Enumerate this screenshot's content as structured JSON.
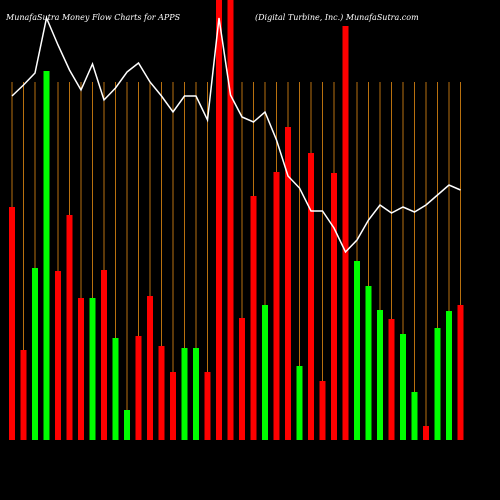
{
  "chart_data": {
    "type": "bar",
    "title": "MunafaSutra  Money Flow  Charts for APPS",
    "subtitle": "(Digital Turbine,  Inc.) MunafaSutra.com",
    "categories": [
      null,
      null,
      null,
      null,
      null,
      null,
      null,
      null,
      null,
      null,
      null,
      null,
      null,
      null,
      null,
      null,
      null,
      null,
      null,
      null,
      null,
      null,
      null,
      null,
      null,
      null,
      null,
      null,
      null,
      null,
      null,
      null,
      null,
      null,
      null,
      null,
      null,
      null,
      null,
      null
    ],
    "values": [
      233,
      90,
      172,
      369,
      169,
      225,
      142,
      142,
      170,
      102,
      30,
      104,
      144,
      94,
      68,
      92,
      92,
      68,
      460,
      460,
      122,
      244,
      135,
      268,
      313,
      74,
      287,
      59,
      267,
      414,
      179,
      154,
      130,
      121,
      106,
      48,
      14,
      112,
      129,
      135
    ],
    "bar_colors": [
      "#ff0000",
      "#ff0000",
      "#00ff00",
      "#00ff00",
      "#ff0000",
      "#ff0000",
      "#ff0000",
      "#00ff00",
      "#ff0000",
      "#00ff00",
      "#00ff00",
      "#ff0000",
      "#ff0000",
      "#ff0000",
      "#ff0000",
      "#00ff00",
      "#00ff00",
      "#ff0000",
      "#ff0000",
      "#ff0000",
      "#ff0000",
      "#ff0000",
      "#00ff00",
      "#ff0000",
      "#ff0000",
      "#00ff00",
      "#ff0000",
      "#ff0000",
      "#ff0000",
      "#ff0000",
      "#00ff00",
      "#00ff00",
      "#00ff00",
      "#ff0000",
      "#00ff00",
      "#00ff00",
      "#ff0000",
      "#00ff00",
      "#00ff00",
      "#ff0000"
    ],
    "line": {
      "color": "#ffffff",
      "values": [
        344,
        355,
        367,
        422,
        395,
        370,
        350,
        376,
        340,
        352,
        368,
        377,
        358,
        344,
        328,
        344,
        344,
        320,
        422,
        345,
        323,
        318,
        328,
        300,
        264,
        252,
        229,
        229,
        212,
        188,
        200,
        220,
        235,
        227,
        233,
        228,
        235,
        245,
        255,
        250
      ]
    },
    "ylim": [
      0,
      440
    ],
    "grid_color": "#b8700f"
  }
}
